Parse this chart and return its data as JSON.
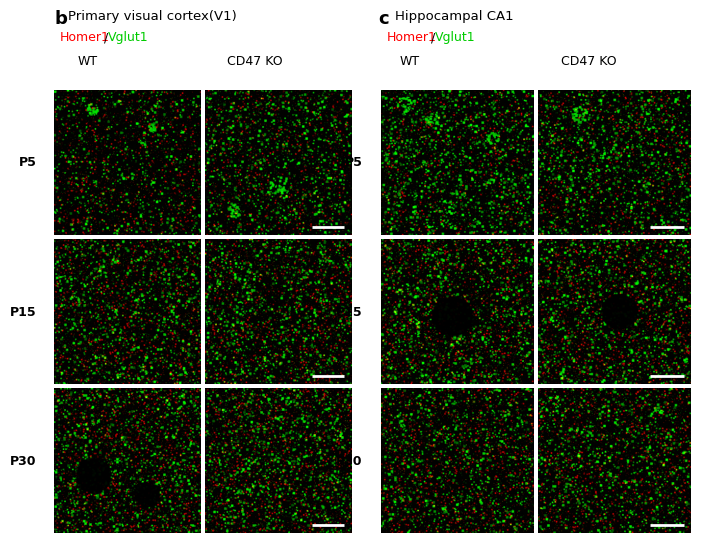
{
  "panel_b_title": "Primary visual cortex(V1)",
  "panel_c_title": "Hippocampal CA1",
  "label_b": "b",
  "label_c": "c",
  "homer1_color": "#ff0000",
  "vglut1_color": "#00cc00",
  "title_color": "#000000",
  "wt_label": "WT",
  "ko_label": "CD47 KO",
  "row_labels": [
    "P5",
    "P15",
    "P30"
  ],
  "background_color": "#ffffff",
  "fig_width": 6.5,
  "fig_height": 5.37,
  "scalebar_color": "#ffffff"
}
